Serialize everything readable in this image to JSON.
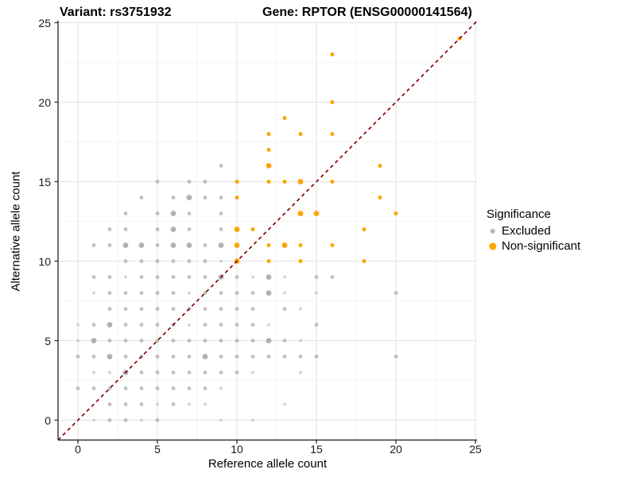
{
  "header": {
    "variant_title": "Variant: rs3751932",
    "gene_title": "Gene: RPTOR (ENSG00000141564)"
  },
  "axes": {
    "x_label": "Reference allele count",
    "y_label": "Alternative allele count",
    "x_ticks": [
      0,
      5,
      10,
      15,
      20,
      25
    ],
    "y_ticks": [
      0,
      5,
      10,
      15,
      20,
      25
    ]
  },
  "legend": {
    "title": "Significance",
    "items": [
      {
        "label": "Excluded",
        "color": "#b6b6b6",
        "key_radius": 3.2
      },
      {
        "label": "Non-significant",
        "color": "#ffa500",
        "key_radius": 4.6
      }
    ]
  },
  "colors": {
    "excluded": "#9e9e9e",
    "non_significant": "#ffa300",
    "identity_line": "#8b0000",
    "grid_major": "#e7e7e7",
    "grid_minor": "#f3f3f3",
    "axis_line": "#333333",
    "tick_mark": "#333333"
  },
  "chart_data": {
    "type": "scatter",
    "title_left": "Variant: rs3751932",
    "title_right": "Gene: RPTOR (ENSG00000141564)",
    "xlabel": "Reference allele count",
    "ylabel": "Alternative allele count",
    "xlim": [
      -1.25,
      25.1
    ],
    "ylim": [
      -1.25,
      25.15
    ],
    "grid": true,
    "minor_grid_step": 2.5,
    "legend_position": "right",
    "identity_line": {
      "type": "abline",
      "slope": 1,
      "intercept": 0,
      "style": "dashed",
      "color": "#8b0000"
    },
    "series": [
      {
        "name": "Excluded",
        "points": [
          [
            1,
            0,
            1
          ],
          [
            2,
            0,
            2
          ],
          [
            3,
            0,
            2
          ],
          [
            4,
            0,
            1
          ],
          [
            5,
            0,
            2
          ],
          [
            9,
            0,
            1
          ],
          [
            11,
            0,
            1
          ],
          [
            2,
            1,
            2
          ],
          [
            3,
            1,
            2
          ],
          [
            4,
            1,
            2
          ],
          [
            5,
            1,
            1
          ],
          [
            6,
            1,
            2
          ],
          [
            7,
            1,
            1
          ],
          [
            8,
            1,
            1
          ],
          [
            13,
            1,
            1
          ],
          [
            0,
            2,
            2
          ],
          [
            1,
            2,
            2
          ],
          [
            2,
            2,
            2
          ],
          [
            3,
            2,
            2
          ],
          [
            4,
            2,
            2
          ],
          [
            5,
            2,
            2
          ],
          [
            6,
            2,
            2
          ],
          [
            7,
            2,
            2
          ],
          [
            8,
            2,
            2
          ],
          [
            9,
            2,
            1
          ],
          [
            1,
            3,
            1
          ],
          [
            2,
            3,
            1
          ],
          [
            3,
            3,
            3
          ],
          [
            4,
            3,
            2
          ],
          [
            5,
            3,
            2
          ],
          [
            6,
            3,
            2
          ],
          [
            7,
            3,
            2
          ],
          [
            8,
            3,
            2
          ],
          [
            9,
            3,
            2
          ],
          [
            10,
            3,
            2
          ],
          [
            11,
            3,
            1
          ],
          [
            14,
            3,
            1
          ],
          [
            0,
            4,
            2
          ],
          [
            1,
            4,
            2
          ],
          [
            2,
            4,
            3
          ],
          [
            3,
            4,
            2
          ],
          [
            4,
            4,
            2
          ],
          [
            5,
            4,
            2
          ],
          [
            6,
            4,
            2
          ],
          [
            7,
            4,
            2
          ],
          [
            8,
            4,
            3
          ],
          [
            9,
            4,
            2
          ],
          [
            10,
            4,
            2
          ],
          [
            11,
            4,
            2
          ],
          [
            12,
            4,
            2
          ],
          [
            13,
            4,
            2
          ],
          [
            14,
            4,
            2
          ],
          [
            15,
            4,
            2
          ],
          [
            20,
            4,
            2
          ],
          [
            0,
            5,
            1
          ],
          [
            1,
            5,
            3
          ],
          [
            2,
            5,
            2
          ],
          [
            3,
            5,
            2
          ],
          [
            4,
            5,
            2
          ],
          [
            5,
            5,
            2
          ],
          [
            6,
            5,
            2
          ],
          [
            7,
            5,
            2
          ],
          [
            8,
            5,
            2
          ],
          [
            9,
            5,
            2
          ],
          [
            10,
            5,
            2
          ],
          [
            11,
            5,
            2
          ],
          [
            12,
            5,
            3
          ],
          [
            13,
            5,
            2
          ],
          [
            14,
            5,
            1
          ],
          [
            0,
            6,
            1
          ],
          [
            1,
            6,
            2
          ],
          [
            2,
            6,
            3
          ],
          [
            3,
            6,
            2
          ],
          [
            4,
            6,
            2
          ],
          [
            5,
            6,
            2
          ],
          [
            6,
            6,
            2
          ],
          [
            7,
            6,
            1
          ],
          [
            8,
            6,
            2
          ],
          [
            9,
            6,
            2
          ],
          [
            10,
            6,
            2
          ],
          [
            11,
            6,
            2
          ],
          [
            12,
            6,
            1
          ],
          [
            15,
            6,
            2
          ],
          [
            2,
            7,
            2
          ],
          [
            3,
            7,
            2
          ],
          [
            4,
            7,
            2
          ],
          [
            5,
            7,
            2
          ],
          [
            6,
            7,
            2
          ],
          [
            7,
            7,
            2
          ],
          [
            8,
            7,
            2
          ],
          [
            9,
            7,
            2
          ],
          [
            10,
            7,
            2
          ],
          [
            11,
            7,
            2
          ],
          [
            13,
            7,
            2
          ],
          [
            14,
            7,
            1
          ],
          [
            1,
            8,
            1
          ],
          [
            2,
            8,
            2
          ],
          [
            3,
            8,
            2
          ],
          [
            4,
            8,
            2
          ],
          [
            5,
            8,
            2
          ],
          [
            6,
            8,
            2
          ],
          [
            7,
            8,
            1
          ],
          [
            8,
            8,
            2
          ],
          [
            9,
            8,
            2
          ],
          [
            10,
            8,
            2
          ],
          [
            11,
            8,
            2
          ],
          [
            12,
            8,
            3
          ],
          [
            13,
            8,
            1
          ],
          [
            15,
            8,
            1
          ],
          [
            20,
            8,
            2
          ],
          [
            1,
            9,
            2
          ],
          [
            2,
            9,
            2
          ],
          [
            3,
            9,
            1
          ],
          [
            4,
            9,
            2
          ],
          [
            5,
            9,
            2
          ],
          [
            6,
            9,
            2
          ],
          [
            7,
            9,
            2
          ],
          [
            8,
            9,
            2
          ],
          [
            9,
            9,
            3
          ],
          [
            10,
            9,
            2
          ],
          [
            11,
            9,
            1
          ],
          [
            12,
            9,
            3
          ],
          [
            13,
            9,
            1
          ],
          [
            15,
            9,
            2
          ],
          [
            16,
            9,
            2
          ],
          [
            3,
            10,
            2
          ],
          [
            4,
            10,
            2
          ],
          [
            5,
            10,
            2
          ],
          [
            6,
            10,
            2
          ],
          [
            7,
            10,
            2
          ],
          [
            8,
            10,
            2
          ],
          [
            9,
            10,
            1
          ],
          [
            1,
            11,
            2
          ],
          [
            2,
            11,
            2
          ],
          [
            3,
            11,
            3
          ],
          [
            4,
            11,
            3
          ],
          [
            5,
            11,
            2
          ],
          [
            6,
            11,
            3
          ],
          [
            7,
            11,
            3
          ],
          [
            8,
            11,
            2
          ],
          [
            9,
            11,
            3
          ],
          [
            2,
            12,
            2
          ],
          [
            3,
            12,
            2
          ],
          [
            5,
            12,
            2
          ],
          [
            6,
            12,
            3
          ],
          [
            7,
            12,
            2
          ],
          [
            9,
            12,
            2
          ],
          [
            3,
            13,
            2
          ],
          [
            5,
            13,
            2
          ],
          [
            6,
            13,
            3
          ],
          [
            7,
            13,
            2
          ],
          [
            9,
            13,
            2
          ],
          [
            4,
            14,
            2
          ],
          [
            6,
            14,
            2
          ],
          [
            7,
            14,
            3
          ],
          [
            8,
            14,
            2
          ],
          [
            9,
            14,
            2
          ],
          [
            5,
            15,
            2
          ],
          [
            7,
            15,
            2
          ],
          [
            8,
            15,
            2
          ],
          [
            9,
            16,
            2
          ]
        ]
      },
      {
        "name": "Non-significant",
        "points": [
          [
            10,
            10,
            3
          ],
          [
            12,
            10,
            2
          ],
          [
            14,
            10,
            2
          ],
          [
            18,
            10,
            2
          ],
          [
            10,
            11,
            3
          ],
          [
            12,
            11,
            2
          ],
          [
            13,
            11,
            3
          ],
          [
            14,
            11,
            2
          ],
          [
            16,
            11,
            2
          ],
          [
            10,
            12,
            3
          ],
          [
            11,
            12,
            2
          ],
          [
            18,
            12,
            2
          ],
          [
            14,
            13,
            3
          ],
          [
            15,
            13,
            3
          ],
          [
            20,
            13,
            2
          ],
          [
            10,
            14,
            2
          ],
          [
            19,
            14,
            2
          ],
          [
            10,
            15,
            2
          ],
          [
            12,
            15,
            2
          ],
          [
            13,
            15,
            2
          ],
          [
            14,
            15,
            3
          ],
          [
            16,
            15,
            2
          ],
          [
            12,
            16,
            3
          ],
          [
            19,
            16,
            2
          ],
          [
            12,
            17,
            2
          ],
          [
            12,
            18,
            2
          ],
          [
            14,
            18,
            2
          ],
          [
            16,
            18,
            2
          ],
          [
            13,
            19,
            2
          ],
          [
            16,
            20,
            2
          ],
          [
            16,
            23,
            2
          ],
          [
            24,
            24,
            2
          ]
        ]
      }
    ]
  }
}
